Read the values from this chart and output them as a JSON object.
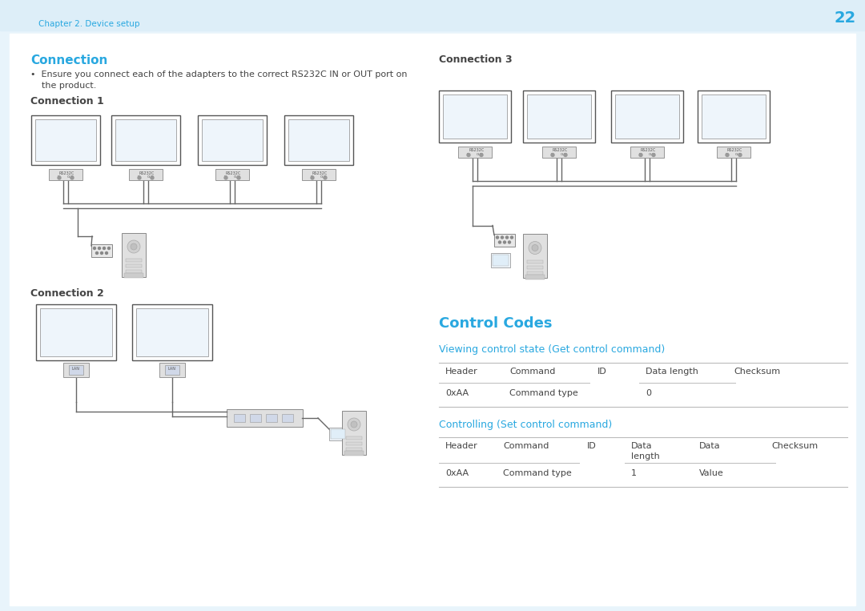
{
  "bg_color": "#e8f4fb",
  "header_bg": "#ddeef8",
  "page_number": "22",
  "chapter_text": "Chapter 2. Device setup",
  "blue_color": "#29a8e0",
  "text_color": "#444444",
  "light_gray": "#cccccc",
  "connection_title": "Connection",
  "connection_bullet1": "•  Ensure you connect each of the adapters to the correct RS232C IN or OUT port on",
  "connection_bullet2": "    the product.",
  "conn1_title": "Connection 1",
  "conn2_title": "Connection 2",
  "conn3_title": "Connection 3",
  "control_codes_title": "Control Codes",
  "viewing_title": "Viewing control state (Get control command)",
  "controlling_title": "Controlling (Set control command)",
  "get_headers": [
    "Header",
    "Command",
    "ID",
    "Data length",
    "Checksum"
  ],
  "get_row": [
    "0xAA",
    "Command type",
    "",
    "0",
    ""
  ],
  "set_headers": [
    "Header",
    "Command",
    "ID",
    "Data\nlength",
    "Data",
    "Checksum"
  ],
  "set_row": [
    "0xAA",
    "Command type",
    "",
    "1",
    "Value",
    ""
  ]
}
